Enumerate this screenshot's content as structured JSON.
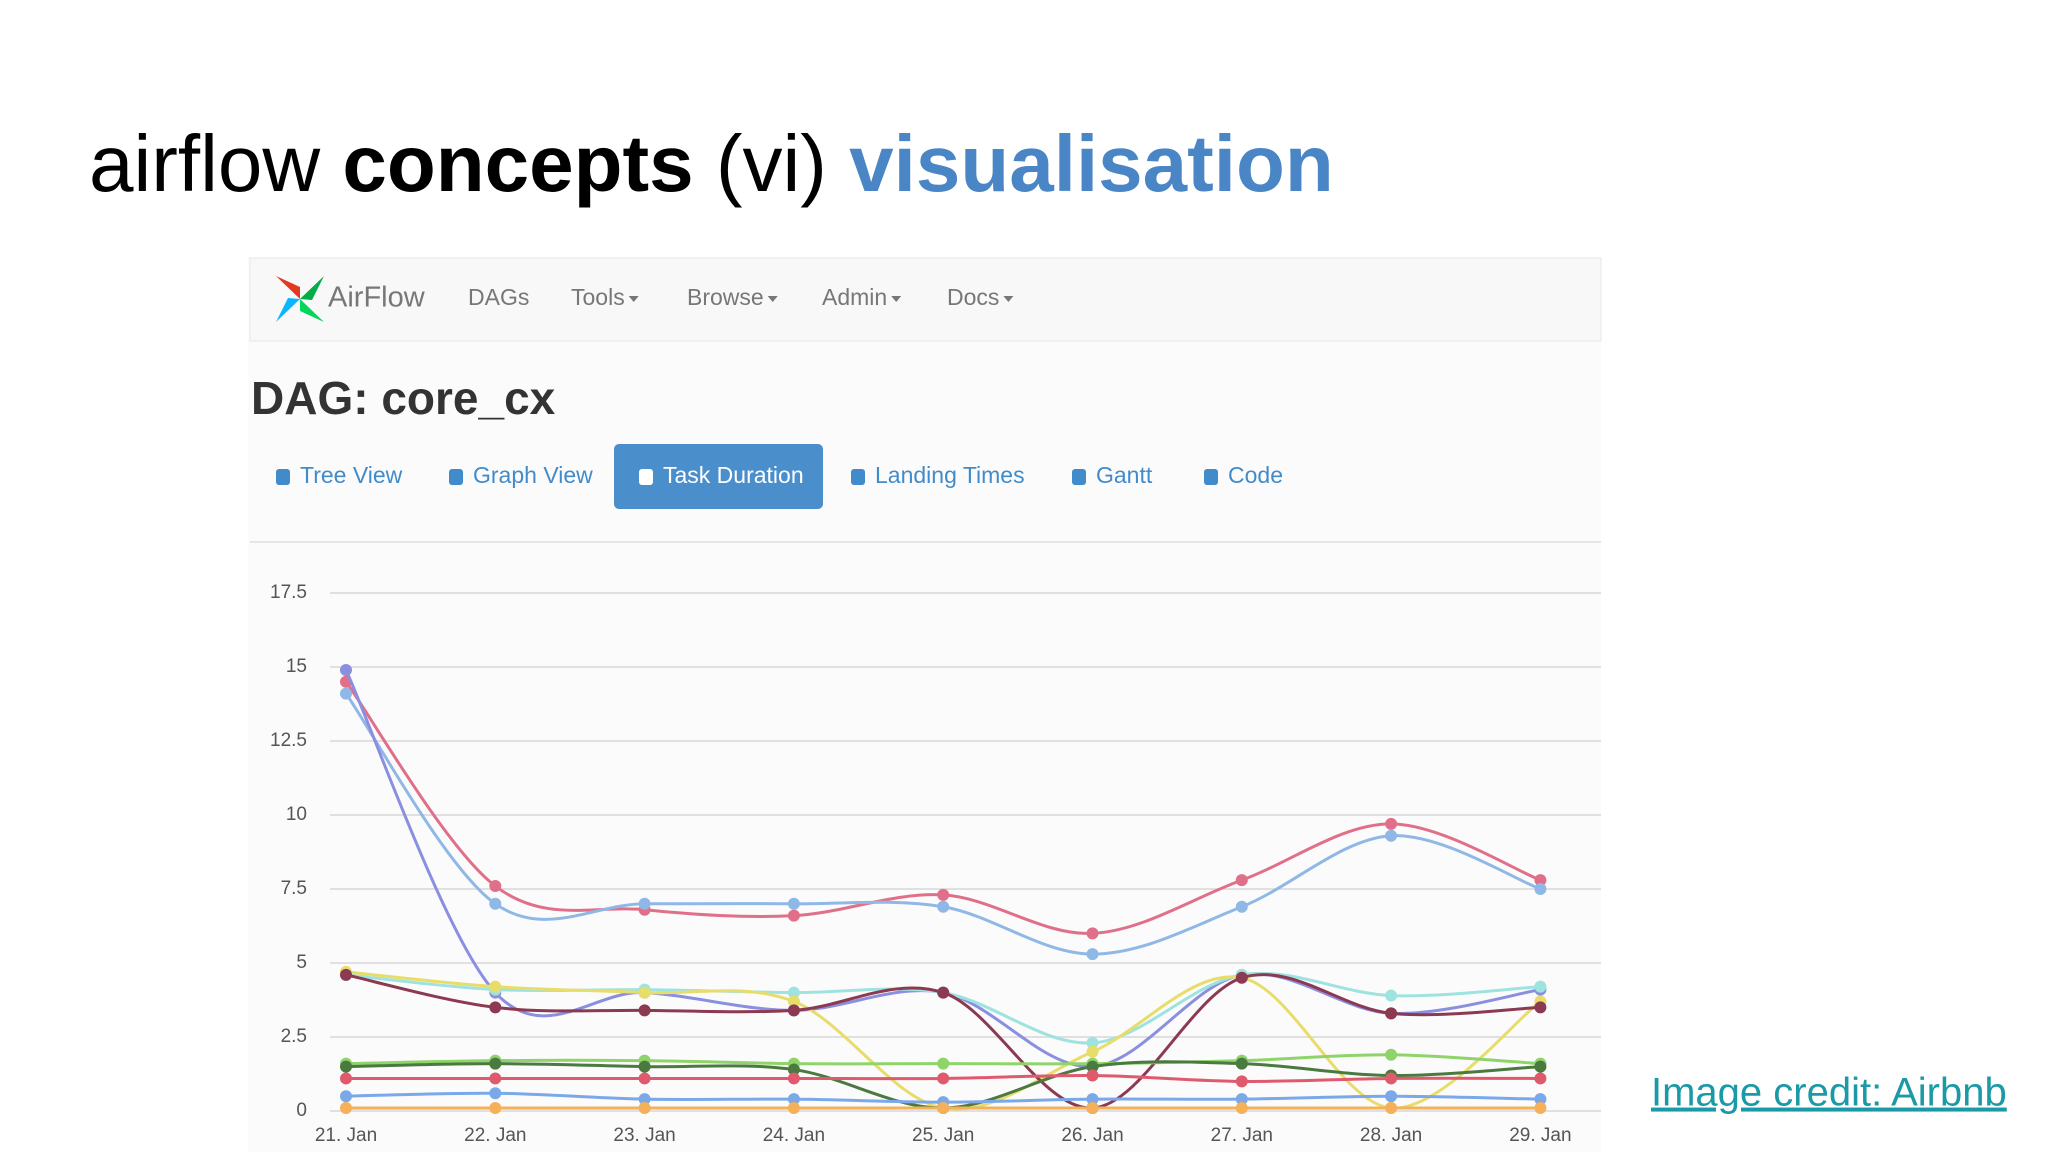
{
  "slide": {
    "title": [
      "airflow",
      "concepts",
      "(vi)",
      "visualisation"
    ],
    "credit": "Image credit: Airbnb"
  },
  "navbar": {
    "brand": "AirFlow",
    "items": [
      {
        "label": "DAGs",
        "dropdown": false
      },
      {
        "label": "Tools",
        "dropdown": true
      },
      {
        "label": "Browse",
        "dropdown": true
      },
      {
        "label": "Admin",
        "dropdown": true
      },
      {
        "label": "Docs",
        "dropdown": true
      }
    ]
  },
  "dag_title": "DAG: core_cx",
  "tabs": {
    "items": [
      "Tree View",
      "Graph View",
      "Task Duration",
      "Landing Times",
      "Gantt",
      "Code"
    ],
    "active": 2
  },
  "chart_data": {
    "type": "line",
    "categories": [
      "21. Jan",
      "22. Jan",
      "23. Jan",
      "24. Jan",
      "25. Jan",
      "26. Jan",
      "27. Jan",
      "28. Jan",
      "29. Jan"
    ],
    "ylim": [
      0,
      17.5
    ],
    "yticks": [
      0,
      2.5,
      5,
      7.5,
      10,
      12.5,
      15,
      17.5
    ],
    "grid": true,
    "series": [
      {
        "color": "#e0708a",
        "values": [
          14.5,
          7.6,
          6.8,
          6.6,
          7.3,
          6.0,
          7.8,
          9.7,
          7.8
        ]
      },
      {
        "color": "#8fb8e6",
        "values": [
          14.1,
          7.0,
          7.0,
          7.0,
          6.9,
          5.3,
          6.9,
          9.3,
          7.5
        ]
      },
      {
        "color": "#8a8fe0",
        "values": [
          14.9,
          4.0,
          4.0,
          3.4,
          4.0,
          1.5,
          4.6,
          3.3,
          4.1
        ]
      },
      {
        "color": "#9ee3e0",
        "values": [
          4.6,
          4.1,
          4.1,
          4.0,
          4.0,
          2.3,
          4.6,
          3.9,
          4.2
        ]
      },
      {
        "color": "#e8dc6a",
        "values": [
          4.7,
          4.2,
          4.0,
          3.7,
          0.1,
          2.0,
          4.5,
          0.1,
          3.7
        ]
      },
      {
        "color": "#8b3a52",
        "values": [
          4.6,
          3.5,
          3.4,
          3.4,
          4.0,
          0.1,
          4.5,
          3.3,
          3.5
        ]
      },
      {
        "color": "#8fd46a",
        "values": [
          1.6,
          1.7,
          1.7,
          1.6,
          1.6,
          1.6,
          1.7,
          1.9,
          1.6
        ]
      },
      {
        "color": "#4a7a40",
        "values": [
          1.5,
          1.6,
          1.5,
          1.4,
          0.1,
          1.5,
          1.6,
          1.2,
          1.5
        ]
      },
      {
        "color": "#e05a6e",
        "values": [
          1.1,
          1.1,
          1.1,
          1.1,
          1.1,
          1.2,
          1.0,
          1.1,
          1.1
        ]
      },
      {
        "color": "#7aa8e8",
        "values": [
          0.5,
          0.6,
          0.4,
          0.4,
          0.3,
          0.4,
          0.4,
          0.5,
          0.4
        ]
      },
      {
        "color": "#f5b05a",
        "values": [
          0.1,
          0.1,
          0.1,
          0.1,
          0.1,
          0.1,
          0.1,
          0.1,
          0.1
        ]
      }
    ]
  }
}
